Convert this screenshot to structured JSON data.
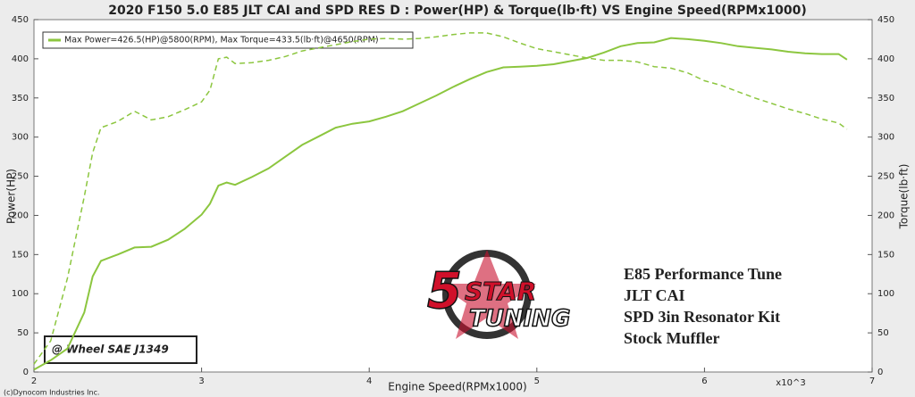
{
  "chart_data": {
    "type": "line",
    "title": "2020 F150 5.0 E85 JLT CAI and SPD RES D : Power(HP) & Torque(lb·ft) VS Engine Speed(RPMx1000)",
    "x_label": "Engine Speed(RPMx1000)",
    "x_multiplier": "x10^3",
    "y_label": "Power(HP)",
    "y2_label": "Torque(lb·ft)",
    "legend": "Max Power=426.5(HP)@5800(RPM), Max Torque=433.5(lb·ft)@4650(RPM)",
    "copyright": "(c)Dynocom Industries Inc.",
    "annotation": "@ Wheel SAE J1349",
    "notes": [
      "E85 Performance Tune",
      "JLT CAI",
      "SPD 3in Resonator Kit",
      "Stock Muffler"
    ],
    "logo": [
      "5",
      "STAR",
      "TUNING"
    ],
    "xlim": [
      2,
      7
    ],
    "xticks": [
      2,
      3,
      4,
      5,
      6,
      7
    ],
    "ylim": [
      0,
      450
    ],
    "yticks": [
      0,
      50,
      100,
      150,
      200,
      250,
      300,
      350,
      400,
      450
    ],
    "y2lim": [
      0,
      450
    ],
    "y2ticks": [
      0,
      50,
      100,
      150,
      200,
      250,
      300,
      350,
      400,
      450
    ],
    "x": [
      2.0,
      2.1,
      2.2,
      2.3,
      2.35,
      2.4,
      2.5,
      2.6,
      2.7,
      2.8,
      2.9,
      3.0,
      3.05,
      3.1,
      3.15,
      3.2,
      3.3,
      3.4,
      3.5,
      3.6,
      3.7,
      3.8,
      3.9,
      4.0,
      4.1,
      4.2,
      4.3,
      4.4,
      4.5,
      4.6,
      4.7,
      4.8,
      4.9,
      5.0,
      5.1,
      5.2,
      5.3,
      5.4,
      5.5,
      5.6,
      5.7,
      5.8,
      5.9,
      6.0,
      6.1,
      6.2,
      6.3,
      6.4,
      6.5,
      6.6,
      6.7,
      6.8,
      6.85
    ],
    "series": [
      {
        "color": "#8cc63f",
        "dash": false,
        "values": [
          3,
          15,
          30,
          76,
          122,
          142,
          150,
          159,
          160,
          169,
          183,
          201,
          215,
          238,
          242,
          239,
          249,
          260,
          275,
          290,
          301,
          312,
          317,
          320,
          326,
          333,
          343,
          353,
          364,
          374,
          383,
          389,
          390,
          391,
          393,
          397,
          401,
          408,
          416,
          420,
          421,
          426.5,
          425,
          423,
          420,
          416,
          414,
          412,
          409,
          407,
          406,
          406,
          399
        ]
      },
      {
        "color": "#8cc63f",
        "dash": true,
        "axis": "y2",
        "values": [
          10,
          40,
          120,
          224,
          280,
          312,
          320,
          333,
          322,
          326,
          335,
          345,
          360,
          400,
          402,
          394,
          395,
          398,
          403,
          410,
          414,
          418,
          422,
          425,
          426,
          425,
          426,
          428,
          431,
          433,
          433,
          428,
          420,
          413,
          409,
          405,
          401,
          398,
          398,
          396,
          390,
          388,
          382,
          372,
          366,
          358,
          350,
          343,
          336,
          330,
          323,
          318,
          310
        ]
      }
    ]
  }
}
